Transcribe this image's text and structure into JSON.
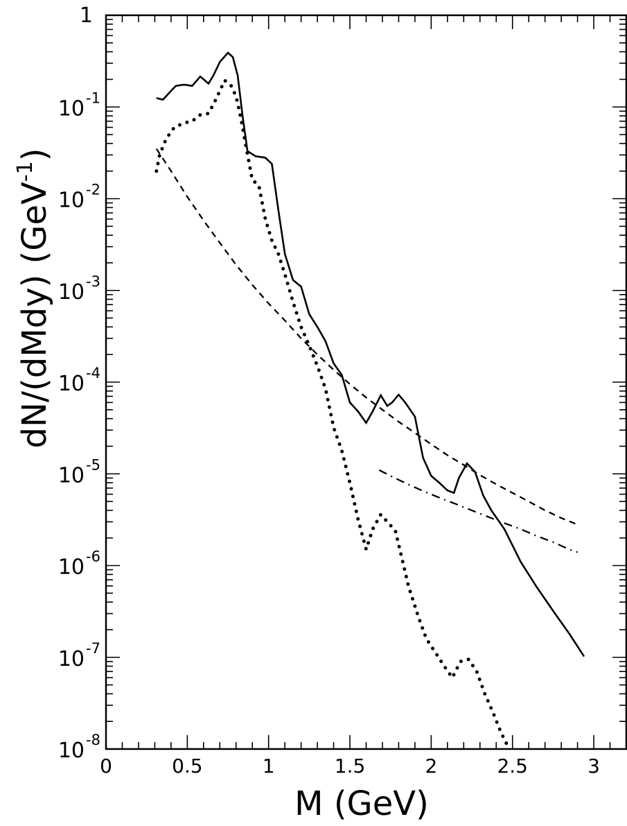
{
  "chart_data": {
    "type": "line",
    "title": "",
    "xlabel": "M (GeV)",
    "ylabel_main": "dN/(dMdy) (GeV",
    "ylabel_sup": "-1",
    "ylabel_close": ")",
    "xlim": [
      0,
      3.2
    ],
    "ylim": [
      1e-08,
      1
    ],
    "yscale": "log",
    "grid": false,
    "x_ticks": [
      {
        "value": 0,
        "label": "0"
      },
      {
        "value": 0.5,
        "label": "0.5"
      },
      {
        "value": 1,
        "label": "1"
      },
      {
        "value": 1.5,
        "label": "1.5"
      },
      {
        "value": 2,
        "label": "2"
      },
      {
        "value": 2.5,
        "label": "2.5"
      },
      {
        "value": 3,
        "label": "3"
      }
    ],
    "y_ticks": [
      {
        "exp": 0,
        "label": "1",
        "sup": ""
      },
      {
        "exp": -1,
        "label": "10",
        "sup": "-1"
      },
      {
        "exp": -2,
        "label": "10",
        "sup": "-2"
      },
      {
        "exp": -3,
        "label": "10",
        "sup": "-3"
      },
      {
        "exp": -4,
        "label": "10",
        "sup": "-4"
      },
      {
        "exp": -5,
        "label": "10",
        "sup": "-5"
      },
      {
        "exp": -6,
        "label": "10",
        "sup": "-6"
      },
      {
        "exp": -7,
        "label": "10",
        "sup": "-7"
      },
      {
        "exp": -8,
        "label": "10",
        "sup": "-8"
      }
    ],
    "series": [
      {
        "style": "solid",
        "color": "#000000",
        "points": [
          [
            0.31,
            0.125
          ],
          [
            0.35,
            0.12
          ],
          [
            0.4,
            0.15
          ],
          [
            0.43,
            0.17
          ],
          [
            0.48,
            0.175
          ],
          [
            0.53,
            0.17
          ],
          [
            0.58,
            0.215
          ],
          [
            0.63,
            0.18
          ],
          [
            0.66,
            0.22
          ],
          [
            0.7,
            0.31
          ],
          [
            0.75,
            0.39
          ],
          [
            0.78,
            0.35
          ],
          [
            0.81,
            0.22
          ],
          [
            0.84,
            0.08
          ],
          [
            0.87,
            0.033
          ],
          [
            0.92,
            0.029
          ],
          [
            0.98,
            0.028
          ],
          [
            1.02,
            0.024
          ],
          [
            1.06,
            0.0075
          ],
          [
            1.1,
            0.0025
          ],
          [
            1.15,
            0.0013
          ],
          [
            1.2,
            0.0011
          ],
          [
            1.25,
            0.00055
          ],
          [
            1.3,
            0.0004
          ],
          [
            1.35,
            0.00028
          ],
          [
            1.4,
            0.00016
          ],
          [
            1.45,
            0.00012
          ],
          [
            1.5,
            6e-05
          ],
          [
            1.55,
            4.8e-05
          ],
          [
            1.6,
            3.6e-05
          ],
          [
            1.64,
            4.8e-05
          ],
          [
            1.69,
            7.2e-05
          ],
          [
            1.73,
            5.5e-05
          ],
          [
            1.76,
            6e-05
          ],
          [
            1.8,
            7.3e-05
          ],
          [
            1.84,
            6e-05
          ],
          [
            1.9,
            4.2e-05
          ],
          [
            1.95,
            1.5e-05
          ],
          [
            2.0,
            9.5e-06
          ],
          [
            2.05,
            8e-06
          ],
          [
            2.1,
            6.6e-06
          ],
          [
            2.14,
            6.2e-06
          ],
          [
            2.17,
            9e-06
          ],
          [
            2.22,
            1.3e-05
          ],
          [
            2.27,
            1.05e-05
          ],
          [
            2.32,
            5.8e-06
          ],
          [
            2.37,
            4e-06
          ],
          [
            2.45,
            2.5e-06
          ],
          [
            2.55,
            1.1e-06
          ],
          [
            2.65,
            5.8e-07
          ],
          [
            2.75,
            3.2e-07
          ],
          [
            2.85,
            1.8e-07
          ],
          [
            2.94,
            1.02e-07
          ]
        ]
      },
      {
        "style": "dotted",
        "color": "#000000",
        "points": [
          [
            0.31,
            0.02
          ],
          [
            0.33,
            0.03
          ],
          [
            0.37,
            0.045
          ],
          [
            0.42,
            0.06
          ],
          [
            0.48,
            0.067
          ],
          [
            0.53,
            0.07
          ],
          [
            0.58,
            0.082
          ],
          [
            0.63,
            0.085
          ],
          [
            0.67,
            0.115
          ],
          [
            0.7,
            0.15
          ],
          [
            0.73,
            0.195
          ],
          [
            0.77,
            0.17
          ],
          [
            0.8,
            0.13
          ],
          [
            0.83,
            0.075
          ],
          [
            0.86,
            0.038
          ],
          [
            0.9,
            0.016
          ],
          [
            0.94,
            0.014
          ],
          [
            0.98,
            0.006
          ],
          [
            1.02,
            0.0035
          ],
          [
            1.06,
            0.0025
          ],
          [
            1.1,
            0.0015
          ],
          [
            1.15,
            0.00075
          ],
          [
            1.2,
            0.0004
          ],
          [
            1.25,
            0.00025
          ],
          [
            1.3,
            0.00015
          ],
          [
            1.35,
            8.5e-05
          ],
          [
            1.4,
            3.2e-05
          ],
          [
            1.45,
            1.8e-05
          ],
          [
            1.5,
            8e-06
          ],
          [
            1.55,
            3.2e-06
          ],
          [
            1.6,
            1.5e-06
          ],
          [
            1.64,
            2.5e-06
          ],
          [
            1.69,
            3.6e-06
          ],
          [
            1.73,
            3e-06
          ],
          [
            1.78,
            2.4e-06
          ],
          [
            1.82,
            1.2e-06
          ],
          [
            1.86,
            6e-07
          ],
          [
            1.92,
            2.8e-07
          ],
          [
            1.97,
            1.6e-07
          ],
          [
            2.03,
            1.1e-07
          ],
          [
            2.08,
            8e-08
          ],
          [
            2.13,
            6e-08
          ],
          [
            2.18,
            9e-08
          ],
          [
            2.23,
            9.5e-08
          ],
          [
            2.28,
            7e-08
          ],
          [
            2.33,
            4e-08
          ],
          [
            2.38,
            2.5e-08
          ],
          [
            2.43,
            1.5e-08
          ],
          [
            2.48,
            1e-08
          ]
        ]
      },
      {
        "style": "dashed",
        "color": "#000000",
        "points": [
          [
            0.31,
            0.035
          ],
          [
            0.4,
            0.02
          ],
          [
            0.5,
            0.0105
          ],
          [
            0.6,
            0.0058
          ],
          [
            0.7,
            0.0033
          ],
          [
            0.8,
            0.0019
          ],
          [
            0.9,
            0.00115
          ],
          [
            1.0,
            0.00072
          ],
          [
            1.1,
            0.00047
          ],
          [
            1.2,
            0.0003
          ],
          [
            1.3,
            0.0002
          ],
          [
            1.4,
            0.000136
          ],
          [
            1.5,
            9.5e-05
          ],
          [
            1.6,
            6.8e-05
          ],
          [
            1.7,
            5e-05
          ],
          [
            1.8,
            3.7e-05
          ],
          [
            1.9,
            2.8e-05
          ],
          [
            2.0,
            2.1e-05
          ],
          [
            2.1,
            1.6e-05
          ],
          [
            2.2,
            1.25e-05
          ],
          [
            2.3,
            9.7e-06
          ],
          [
            2.4,
            7.7e-06
          ],
          [
            2.5,
            6.2e-06
          ],
          [
            2.6,
            5e-06
          ],
          [
            2.7,
            4e-06
          ],
          [
            2.8,
            3.3e-06
          ],
          [
            2.9,
            2.8e-06
          ]
        ]
      },
      {
        "style": "dashdot",
        "color": "#000000",
        "points": [
          [
            1.68,
            1.1e-05
          ],
          [
            1.75,
            9.5e-06
          ],
          [
            1.85,
            7.8e-06
          ],
          [
            1.95,
            6.5e-06
          ],
          [
            2.05,
            5.5e-06
          ],
          [
            2.15,
            4.7e-06
          ],
          [
            2.25,
            4e-06
          ],
          [
            2.35,
            3.4e-06
          ],
          [
            2.45,
            2.9e-06
          ],
          [
            2.55,
            2.5e-06
          ],
          [
            2.65,
            2.1e-06
          ],
          [
            2.75,
            1.8e-06
          ],
          [
            2.85,
            1.5e-06
          ],
          [
            2.9,
            1.4e-06
          ]
        ]
      }
    ]
  }
}
